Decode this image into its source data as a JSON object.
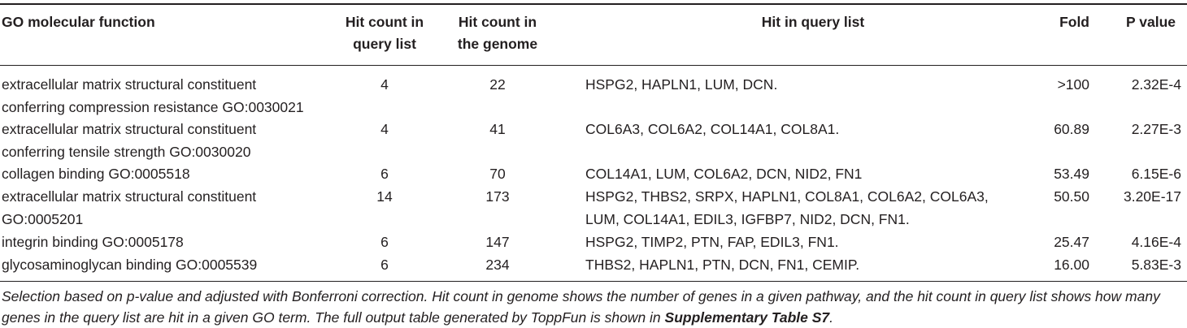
{
  "headers": {
    "function": "GO molecular function",
    "query_count_line1": "Hit count in",
    "query_count_line2": "query list",
    "genome_count_line1": "Hit count in",
    "genome_count_line2": "the genome",
    "hits": "Hit in query list",
    "fold": "Fold",
    "pvalue": "P value"
  },
  "rows": [
    {
      "function_line1": "extracellular matrix structural constituent",
      "function_line2": "conferring compression resistance GO:0030021",
      "query_count": "4",
      "genome_count": "22",
      "hits_line1": "HSPG2, HAPLN1, LUM, DCN.",
      "hits_line2": "",
      "fold": ">100",
      "pvalue": "2.32E-4"
    },
    {
      "function_line1": "extracellular matrix structural constituent",
      "function_line2": "conferring tensile strength GO:0030020",
      "query_count": "4",
      "genome_count": "41",
      "hits_line1": "COL6A3, COL6A2, COL14A1, COL8A1.",
      "hits_line2": "",
      "fold": "60.89",
      "pvalue": "2.27E-3"
    },
    {
      "function_line1": "collagen binding GO:0005518",
      "function_line2": "",
      "query_count": "6",
      "genome_count": "70",
      "hits_line1": "COL14A1, LUM, COL6A2, DCN, NID2, FN1",
      "hits_line2": "",
      "fold": "53.49",
      "pvalue": "6.15E-6"
    },
    {
      "function_line1": "extracellular matrix structural constituent",
      "function_line2": "GO:0005201",
      "query_count": "14",
      "genome_count": "173",
      "hits_line1": "HSPG2, THBS2, SRPX, HAPLN1, COL8A1, COL6A2, COL6A3,",
      "hits_line2": "LUM, COL14A1, EDIL3, IGFBP7, NID2, DCN, FN1.",
      "fold": "50.50",
      "pvalue": "3.20E-17"
    },
    {
      "function_line1": "integrin binding GO:0005178",
      "function_line2": "",
      "query_count": "6",
      "genome_count": "147",
      "hits_line1": "HSPG2, TIMP2, PTN, FAP, EDIL3, FN1.",
      "hits_line2": "",
      "fold": "25.47",
      "pvalue": "4.16E-4"
    },
    {
      "function_line1": "glycosaminoglycan binding GO:0005539",
      "function_line2": "",
      "query_count": "6",
      "genome_count": "234",
      "hits_line1": "THBS2, HAPLN1, PTN, DCN, FN1, CEMIP.",
      "hits_line2": "",
      "fold": "16.00",
      "pvalue": "5.83E-3"
    }
  ],
  "footnote": {
    "text_main": "Selection based on p-value and adjusted with Bonferroni correction. Hit count in genome shows the number of genes in a given pathway, and the hit count in query list shows how many genes in the query list are hit in a given GO term. The full output table generated by ToppFun is shown in ",
    "text_bold": "Supplementary Table S7",
    "text_end": "."
  }
}
